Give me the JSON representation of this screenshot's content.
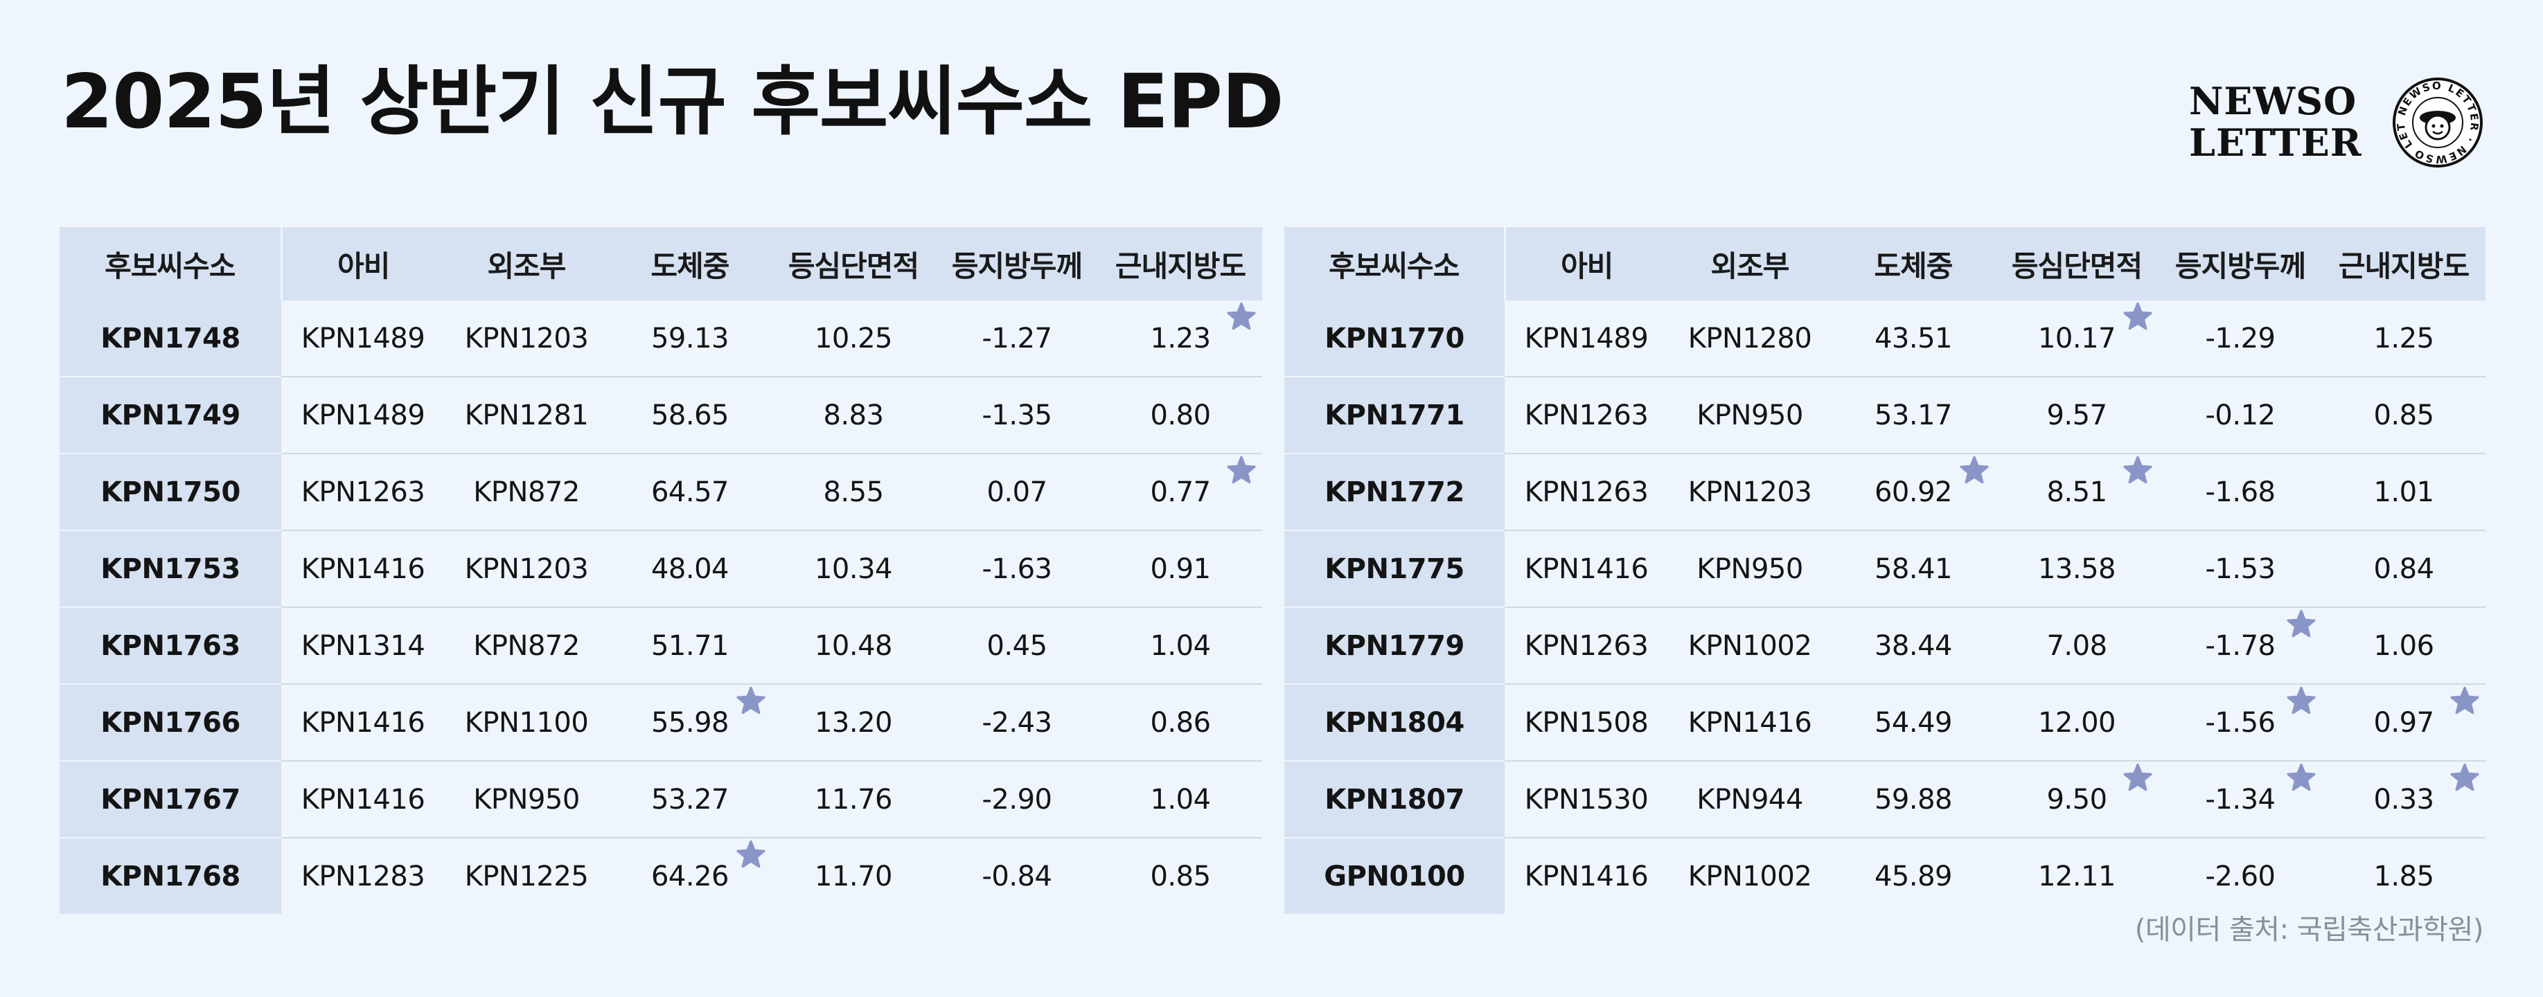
{
  "title": "2025년 상반기 신규 후보씨수소 EPD",
  "logo": {
    "line1": "NEWSO",
    "line2": "LETTER",
    "badge_text": "NEWSO LETTER"
  },
  "columns": [
    "후보씨수소",
    "아비",
    "외조부",
    "도체중",
    "등심단면적",
    "등지방두께",
    "근내지방도"
  ],
  "tables": [
    {
      "rows": [
        {
          "cells": [
            "KPN1748",
            "KPN1489",
            "KPN1203",
            "59.13",
            "10.25",
            "-1.27",
            "1.23"
          ],
          "stars": [
            6
          ]
        },
        {
          "cells": [
            "KPN1749",
            "KPN1489",
            "KPN1281",
            "58.65",
            "8.83",
            "-1.35",
            "0.80"
          ],
          "stars": []
        },
        {
          "cells": [
            "KPN1750",
            "KPN1263",
            "KPN872",
            "64.57",
            "8.55",
            "0.07",
            "0.77"
          ],
          "stars": [
            6
          ]
        },
        {
          "cells": [
            "KPN1753",
            "KPN1416",
            "KPN1203",
            "48.04",
            "10.34",
            "-1.63",
            "0.91"
          ],
          "stars": []
        },
        {
          "cells": [
            "KPN1763",
            "KPN1314",
            "KPN872",
            "51.71",
            "10.48",
            "0.45",
            "1.04"
          ],
          "stars": []
        },
        {
          "cells": [
            "KPN1766",
            "KPN1416",
            "KPN1100",
            "55.98",
            "13.20",
            "-2.43",
            "0.86"
          ],
          "stars": [
            3
          ]
        },
        {
          "cells": [
            "KPN1767",
            "KPN1416",
            "KPN950",
            "53.27",
            "11.76",
            "-2.90",
            "1.04"
          ],
          "stars": []
        },
        {
          "cells": [
            "KPN1768",
            "KPN1283",
            "KPN1225",
            "64.26",
            "11.70",
            "-0.84",
            "0.85"
          ],
          "stars": [
            3
          ]
        }
      ]
    },
    {
      "rows": [
        {
          "cells": [
            "KPN1770",
            "KPN1489",
            "KPN1280",
            "43.51",
            "10.17",
            "-1.29",
            "1.25"
          ],
          "stars": [
            4
          ]
        },
        {
          "cells": [
            "KPN1771",
            "KPN1263",
            "KPN950",
            "53.17",
            "9.57",
            "-0.12",
            "0.85"
          ],
          "stars": []
        },
        {
          "cells": [
            "KPN1772",
            "KPN1263",
            "KPN1203",
            "60.92",
            "8.51",
            "-1.68",
            "1.01"
          ],
          "stars": [
            3,
            4
          ]
        },
        {
          "cells": [
            "KPN1775",
            "KPN1416",
            "KPN950",
            "58.41",
            "13.58",
            "-1.53",
            "0.84"
          ],
          "stars": []
        },
        {
          "cells": [
            "KPN1779",
            "KPN1263",
            "KPN1002",
            "38.44",
            "7.08",
            "-1.78",
            "1.06"
          ],
          "stars": [
            5
          ]
        },
        {
          "cells": [
            "KPN1804",
            "KPN1508",
            "KPN1416",
            "54.49",
            "12.00",
            "-1.56",
            "0.97"
          ],
          "stars": [
            5,
            6
          ]
        },
        {
          "cells": [
            "KPN1807",
            "KPN1530",
            "KPN944",
            "59.88",
            "9.50",
            "-1.34",
            "0.33"
          ],
          "stars": [
            4,
            5,
            6
          ]
        },
        {
          "cells": [
            "GPN0100",
            "KPN1416",
            "KPN1002",
            "45.89",
            "12.11",
            "-2.60",
            "1.85"
          ],
          "stars": []
        }
      ]
    }
  ],
  "star_icon": "star-icon",
  "star_color": "#8a95c7",
  "header_bg": "#d6e1f2",
  "page_bg": "#eef5fc",
  "source": "(데이터 출처: 국립축산과학원)"
}
